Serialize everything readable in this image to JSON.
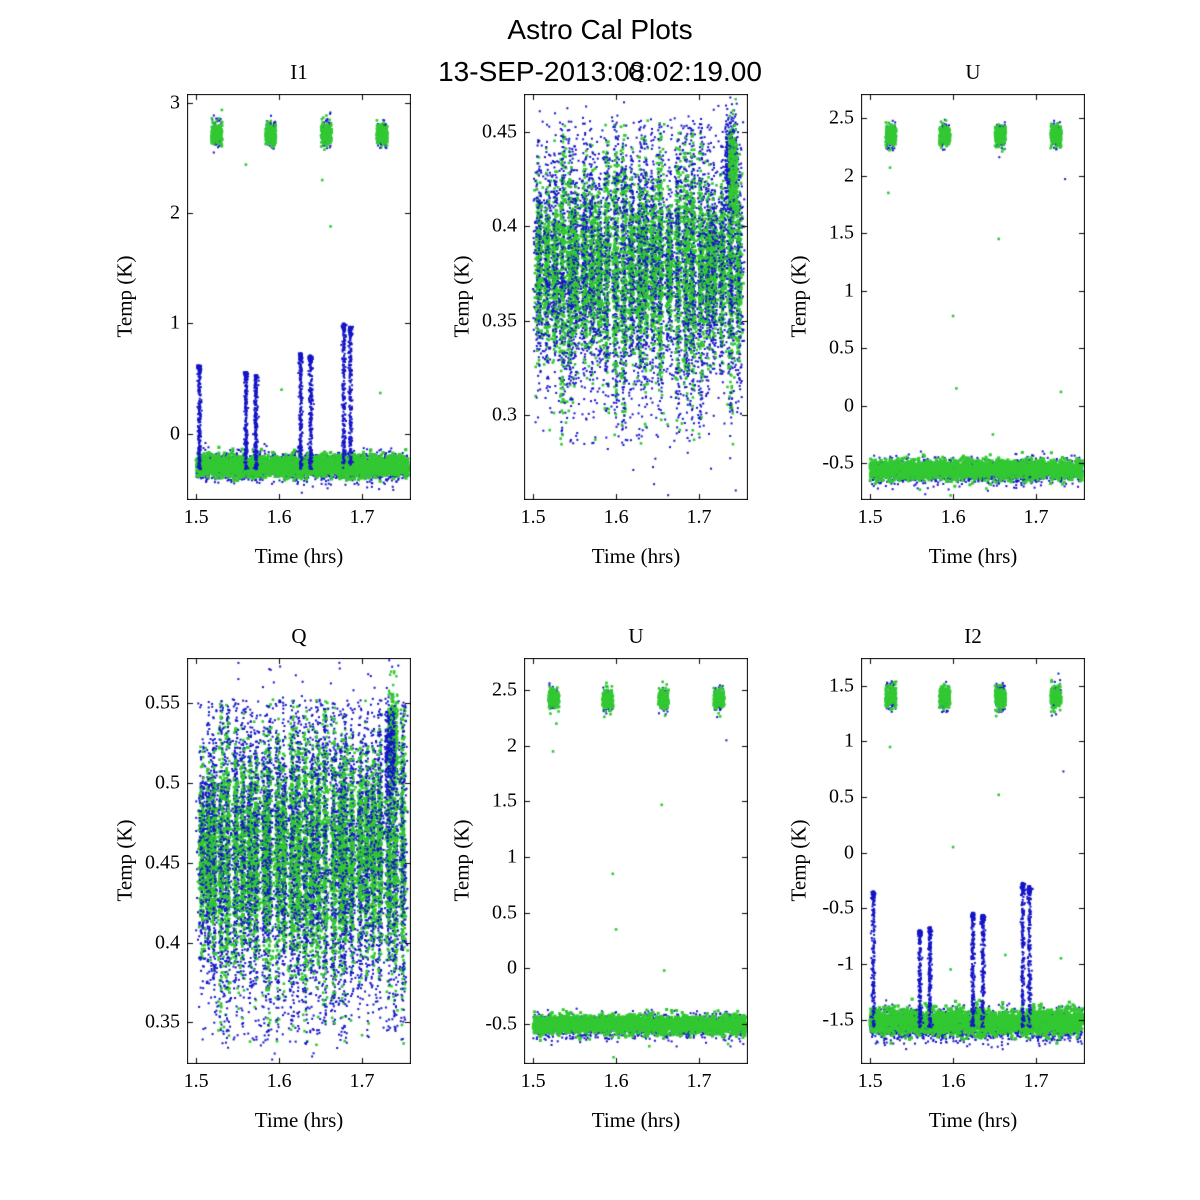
{
  "figure": {
    "title": "Astro Cal Plots",
    "subtitle": "13-SEP-2013:08:02:19.00",
    "background": "#ffffff",
    "series_colors": {
      "blue": "#1414c8",
      "green": "#32c832"
    }
  },
  "chart_data": [
    {
      "type": "scatter",
      "title": "I1",
      "xlabel": "Time (hrs)",
      "ylabel": "Temp (K)",
      "xlim": [
        1.489,
        1.759
      ],
      "ylim": [
        -0.6,
        3.08
      ],
      "xticks": [
        1.5,
        1.6,
        1.7
      ],
      "xtick_labels": [
        "1.5",
        "1.6",
        "1.7"
      ],
      "yticks": [
        0,
        1,
        2,
        3
      ],
      "ytick_labels": [
        "0",
        "1",
        "2",
        "3"
      ],
      "seed": 11,
      "series": [
        {
          "kind": "band",
          "color": "blue",
          "y": -0.3,
          "ysig": 0.062,
          "x0": 1.5,
          "x1": 1.756,
          "n": 2000,
          "size": 2
        },
        {
          "kind": "band",
          "color": "green",
          "y": -0.29,
          "ysig": 0.048,
          "x0": 1.5,
          "x1": 1.756,
          "n": 2600,
          "size": 3.2
        },
        {
          "kind": "clusters",
          "color": "blue",
          "xs": [
            1.525,
            1.59,
            1.657,
            1.724
          ],
          "xw": 0.011,
          "y": 2.72,
          "ysig": 0.058,
          "n": 140,
          "size": 2
        },
        {
          "kind": "clusters",
          "color": "green",
          "xs": [
            1.525,
            1.59,
            1.657,
            1.724
          ],
          "xw": 0.013,
          "y": 2.72,
          "ysig": 0.05,
          "n": 180,
          "size": 2.6
        },
        {
          "kind": "spikes",
          "color": "blue",
          "y0": -0.32,
          "n": 260,
          "size": 2,
          "x_top": [
            [
              1.504,
              0.62
            ],
            [
              1.56,
              0.56
            ],
            [
              1.572,
              0.53
            ],
            [
              1.626,
              0.73
            ],
            [
              1.638,
              0.71
            ],
            [
              1.678,
              1.0
            ],
            [
              1.686,
              0.97
            ]
          ]
        },
        {
          "kind": "points",
          "color": "green",
          "size": 2.6,
          "pts": [
            [
              1.603,
              0.4
            ],
            [
              1.652,
              2.3
            ],
            [
              1.662,
              1.88
            ],
            [
              1.722,
              0.37
            ],
            [
              1.56,
              2.44
            ]
          ]
        }
      ]
    },
    {
      "type": "scatter",
      "title": "Q",
      "xlabel": "Time (hrs)",
      "ylabel": "Temp (K)",
      "xlim": [
        1.489,
        1.759
      ],
      "ylim": [
        0.255,
        0.47
      ],
      "xticks": [
        1.5,
        1.6,
        1.7
      ],
      "xtick_labels": [
        "1.5",
        "1.6",
        "1.7"
      ],
      "yticks": [
        0.3,
        0.35,
        0.4,
        0.45
      ],
      "ytick_labels": [
        "0.3",
        "0.35",
        "0.4",
        "0.45"
      ],
      "seed": 22,
      "series": [
        {
          "kind": "stripes",
          "x0": 1.502,
          "x1": 1.752,
          "ncols": 27,
          "n_per": 450,
          "y_mean": 0.378,
          "y_sig": 0.033,
          "y_min": 0.284,
          "y_max": 0.456,
          "size_blue": 2,
          "size_green": 2.6
        },
        {
          "kind": "band",
          "color": "blue",
          "y": 0.378,
          "ysig": 0.042,
          "x0": 1.5,
          "x1": 1.755,
          "n": 900,
          "size": 2
        },
        {
          "kind": "clusters",
          "color": "blue",
          "xs": [
            1.738
          ],
          "xw": 0.013,
          "y": 0.432,
          "ysig": 0.013,
          "n": 420,
          "size": 2
        },
        {
          "kind": "clusters",
          "color": "green",
          "xs": [
            1.741
          ],
          "xw": 0.01,
          "y": 0.427,
          "ysig": 0.012,
          "n": 260,
          "size": 2.4
        },
        {
          "kind": "points",
          "color": "green",
          "size": 2.6,
          "pts": [
            [
              1.52,
              0.292
            ],
            [
              1.575,
              0.287
            ],
            [
              1.63,
              0.285
            ],
            [
              1.662,
              0.295
            ],
            [
              1.7,
              0.29
            ]
          ]
        },
        {
          "kind": "points",
          "color": "blue",
          "size": 2,
          "pts": [
            [
              1.545,
              0.286
            ],
            [
              1.665,
              0.283
            ],
            [
              1.712,
              0.29
            ],
            [
              1.59,
              0.282
            ]
          ]
        }
      ]
    },
    {
      "type": "scatter",
      "title": "U",
      "xlabel": "Time (hrs)",
      "ylabel": "Temp (K)",
      "xlim": [
        1.489,
        1.759
      ],
      "ylim": [
        -0.82,
        2.71
      ],
      "xticks": [
        1.5,
        1.6,
        1.7
      ],
      "xtick_labels": [
        "1.5",
        "1.6",
        "1.7"
      ],
      "yticks": [
        -0.5,
        0,
        0.5,
        1,
        1.5,
        2,
        2.5
      ],
      "ytick_labels": [
        "-0.5",
        "0",
        "0.5",
        "1",
        "1.5",
        "2",
        "2.5"
      ],
      "seed": 33,
      "series": [
        {
          "kind": "band",
          "color": "blue",
          "y": -0.57,
          "ysig": 0.05,
          "x0": 1.5,
          "x1": 1.756,
          "n": 1800,
          "size": 2
        },
        {
          "kind": "band",
          "color": "green",
          "y": -0.555,
          "ysig": 0.042,
          "x0": 1.5,
          "x1": 1.756,
          "n": 2400,
          "size": 3
        },
        {
          "kind": "clusters",
          "color": "blue",
          "xs": [
            1.525,
            1.59,
            1.657,
            1.724
          ],
          "xw": 0.011,
          "y": 2.35,
          "ysig": 0.052,
          "n": 130,
          "size": 2
        },
        {
          "kind": "clusters",
          "color": "green",
          "xs": [
            1.525,
            1.59,
            1.657,
            1.724
          ],
          "xw": 0.013,
          "y": 2.35,
          "ysig": 0.046,
          "n": 170,
          "size": 2.6
        },
        {
          "kind": "points",
          "color": "green",
          "size": 2.6,
          "pts": [
            [
              1.522,
              1.85
            ],
            [
              1.524,
              2.07
            ],
            [
              1.6,
              0.78
            ],
            [
              1.604,
              0.15
            ],
            [
              1.655,
              1.45
            ],
            [
              1.648,
              -0.25
            ],
            [
              1.73,
              0.12
            ],
            [
              1.56,
              -0.73
            ],
            [
              1.64,
              -0.72
            ],
            [
              1.597,
              -0.78
            ]
          ]
        },
        {
          "kind": "points",
          "color": "blue",
          "size": 2,
          "pts": [
            [
              1.735,
              1.97
            ]
          ]
        }
      ]
    },
    {
      "type": "scatter",
      "title": "Q",
      "xlabel": "Time (hrs)",
      "ylabel": "Temp (K)",
      "xlim": [
        1.489,
        1.759
      ],
      "ylim": [
        0.324,
        0.578
      ],
      "xticks": [
        1.5,
        1.6,
        1.7
      ],
      "xtick_labels": [
        "1.5",
        "1.6",
        "1.7"
      ],
      "yticks": [
        0.35,
        0.4,
        0.45,
        0.5,
        0.55
      ],
      "ytick_labels": [
        "0.35",
        "0.4",
        "0.45",
        "0.5",
        "0.55"
      ],
      "seed": 44,
      "series": [
        {
          "kind": "stripes",
          "x0": 1.502,
          "x1": 1.752,
          "ncols": 30,
          "n_per": 500,
          "y_mean": 0.455,
          "y_sig": 0.041,
          "y_min": 0.336,
          "y_max": 0.552,
          "size_blue": 2,
          "size_green": 2.6
        },
        {
          "kind": "band",
          "color": "blue",
          "y": 0.455,
          "ysig": 0.05,
          "x0": 1.5,
          "x1": 1.755,
          "n": 1100,
          "size": 2
        },
        {
          "kind": "clusters",
          "color": "green",
          "xs": [
            1.737
          ],
          "xw": 0.012,
          "y": 0.528,
          "ysig": 0.014,
          "n": 320,
          "size": 2.4
        },
        {
          "kind": "clusters",
          "color": "blue",
          "xs": [
            1.734
          ],
          "xw": 0.012,
          "y": 0.52,
          "ysig": 0.016,
          "n": 260,
          "size": 2
        },
        {
          "kind": "points",
          "color": "green",
          "size": 2.6,
          "pts": [
            [
              1.527,
              0.345
            ],
            [
              1.565,
              0.338
            ],
            [
              1.6,
              0.352
            ],
            [
              1.645,
              0.336
            ],
            [
              1.7,
              0.342
            ],
            [
              1.755,
              0.395
            ]
          ]
        },
        {
          "kind": "points",
          "color": "blue",
          "size": 2,
          "pts": [
            [
              1.55,
              0.342
            ],
            [
              1.62,
              0.338
            ],
            [
              1.67,
              0.334
            ],
            [
              1.73,
              0.345
            ]
          ]
        }
      ]
    },
    {
      "type": "scatter",
      "title": "U",
      "xlabel": "Time (hrs)",
      "ylabel": "Temp (K)",
      "xlim": [
        1.489,
        1.759
      ],
      "ylim": [
        -0.86,
        2.79
      ],
      "xticks": [
        1.5,
        1.6,
        1.7
      ],
      "xtick_labels": [
        "1.5",
        "1.6",
        "1.7"
      ],
      "yticks": [
        -0.5,
        0,
        0.5,
        1,
        1.5,
        2,
        2.5
      ],
      "ytick_labels": [
        "-0.5",
        "0",
        "0.5",
        "1",
        "1.5",
        "2",
        "2.5"
      ],
      "seed": 55,
      "series": [
        {
          "kind": "band",
          "color": "blue",
          "y": -0.52,
          "ysig": 0.05,
          "x0": 1.5,
          "x1": 1.756,
          "n": 1800,
          "size": 2
        },
        {
          "kind": "band",
          "color": "green",
          "y": -0.505,
          "ysig": 0.042,
          "x0": 1.5,
          "x1": 1.756,
          "n": 2400,
          "size": 3
        },
        {
          "kind": "clusters",
          "color": "blue",
          "xs": [
            1.525,
            1.59,
            1.657,
            1.724
          ],
          "xw": 0.011,
          "y": 2.42,
          "ysig": 0.05,
          "n": 130,
          "size": 2
        },
        {
          "kind": "clusters",
          "color": "green",
          "xs": [
            1.525,
            1.59,
            1.657,
            1.724
          ],
          "xw": 0.013,
          "y": 2.42,
          "ysig": 0.046,
          "n": 170,
          "size": 2.6
        },
        {
          "kind": "points",
          "color": "green",
          "size": 2.6,
          "pts": [
            [
              1.524,
              1.95
            ],
            [
              1.528,
              2.2
            ],
            [
              1.596,
              0.85
            ],
            [
              1.6,
              0.35
            ],
            [
              1.655,
              1.47
            ],
            [
              1.658,
              -0.02
            ],
            [
              1.597,
              -0.8
            ],
            [
              1.64,
              -0.7
            ],
            [
              1.735,
              -0.68
            ]
          ]
        },
        {
          "kind": "points",
          "color": "blue",
          "size": 2,
          "pts": [
            [
              1.733,
              2.05
            ]
          ]
        }
      ]
    },
    {
      "type": "scatter",
      "title": "I2",
      "xlabel": "Time (hrs)",
      "ylabel": "Temp (K)",
      "xlim": [
        1.489,
        1.759
      ],
      "ylim": [
        -1.9,
        1.75
      ],
      "xticks": [
        1.5,
        1.6,
        1.7
      ],
      "xtick_labels": [
        "1.5",
        "1.6",
        "1.7"
      ],
      "yticks": [
        -1.5,
        -1,
        -0.5,
        0,
        0.5,
        1,
        1.5
      ],
      "ytick_labels": [
        "-1.5",
        "-1",
        "-0.5",
        "0",
        "0.5",
        "1",
        "1.5"
      ],
      "seed": 66,
      "series": [
        {
          "kind": "band",
          "color": "blue",
          "y": -1.55,
          "ysig": 0.07,
          "x0": 1.5,
          "x1": 1.756,
          "n": 2000,
          "size": 2
        },
        {
          "kind": "band",
          "color": "green",
          "y": -1.52,
          "ysig": 0.055,
          "x0": 1.5,
          "x1": 1.756,
          "n": 2600,
          "size": 3.2
        },
        {
          "kind": "clusters",
          "color": "blue",
          "xs": [
            1.525,
            1.59,
            1.657,
            1.724
          ],
          "xw": 0.011,
          "y": 1.4,
          "ysig": 0.058,
          "n": 140,
          "size": 2
        },
        {
          "kind": "clusters",
          "color": "green",
          "xs": [
            1.525,
            1.59,
            1.657,
            1.724
          ],
          "xw": 0.013,
          "y": 1.4,
          "ysig": 0.05,
          "n": 180,
          "size": 2.6
        },
        {
          "kind": "spikes",
          "color": "blue",
          "y0": -1.57,
          "n": 240,
          "size": 2,
          "x_top": [
            [
              1.504,
              -0.35
            ],
            [
              1.56,
              -0.7
            ],
            [
              1.572,
              -0.67
            ],
            [
              1.624,
              -0.54
            ],
            [
              1.636,
              -0.56
            ],
            [
              1.684,
              -0.27
            ],
            [
              1.692,
              -0.3
            ]
          ]
        },
        {
          "kind": "points",
          "color": "green",
          "size": 2.6,
          "pts": [
            [
              1.524,
              0.95
            ],
            [
              1.655,
              0.52
            ],
            [
              1.6,
              0.05
            ],
            [
              1.73,
              -0.95
            ],
            [
              1.663,
              -0.92
            ],
            [
              1.597,
              -1.05
            ]
          ]
        },
        {
          "kind": "points",
          "color": "blue",
          "size": 2,
          "pts": [
            [
              1.733,
              0.73
            ]
          ]
        }
      ]
    }
  ]
}
